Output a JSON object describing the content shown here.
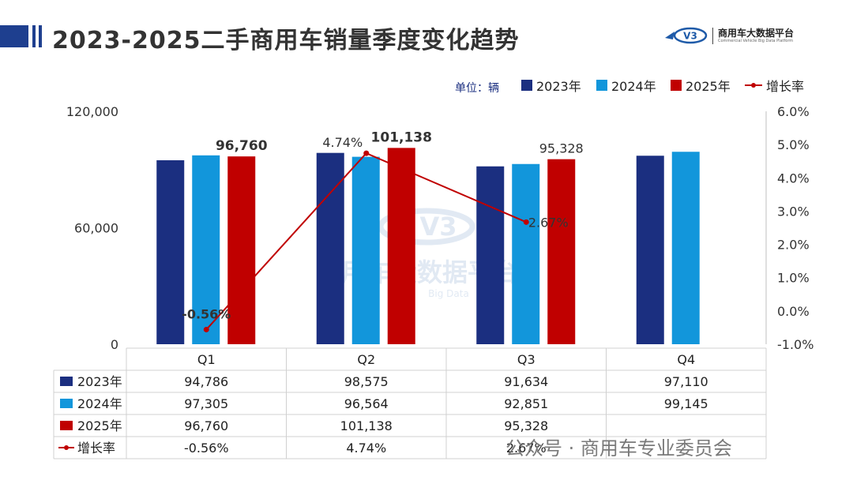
{
  "title": "2023-2025二手商用车销量季度变化趋势",
  "logo": {
    "name": "商用车大数据平台",
    "sub": "Commercial Vehicle Big Data Platform",
    "mark": "V3"
  },
  "unit_label": "单位：辆",
  "watermark": {
    "main": "商用车大数据平台",
    "sub": "Big Data",
    "mark": "V3"
  },
  "footer": "公众号 · 商用车专业委员会",
  "colors": {
    "s2023": "#1b2f80",
    "s2024": "#1296db",
    "s2025": "#c00000",
    "growth": "#c00000"
  },
  "chart_data": {
    "type": "bar",
    "categories": [
      "Q1",
      "Q2",
      "Q3",
      "Q4"
    ],
    "series": [
      {
        "name": "2023年",
        "values": [
          94786,
          98575,
          91634,
          97110
        ],
        "display": [
          "94,786",
          "98,575",
          "91,634",
          "97,110"
        ]
      },
      {
        "name": "2024年",
        "values": [
          97305,
          96564,
          92851,
          99145
        ],
        "display": [
          "97,305",
          "96,564",
          "92,851",
          "99,145"
        ]
      },
      {
        "name": "2025年",
        "values": [
          96760,
          101138,
          95328,
          null
        ],
        "display": [
          "96,760",
          "101,138",
          "95,328",
          ""
        ]
      }
    ],
    "line_series": {
      "name": "增长率",
      "values": [
        -0.56,
        4.74,
        2.67,
        null
      ],
      "display": [
        "-0.56%",
        "4.74%",
        "2.67%",
        ""
      ]
    },
    "bar_labels": [
      "96,760",
      "101,138",
      "95,328"
    ],
    "y_axis": {
      "range": [
        0,
        120000
      ],
      "ticks": [
        "0",
        "60,000",
        "120,000"
      ],
      "tick_values": [
        0,
        60000,
        120000
      ]
    },
    "y2_axis": {
      "range": [
        -1.0,
        6.0
      ],
      "ticks": [
        "6.0%",
        "5.0%",
        "4.0%",
        "3.0%",
        "2.0%",
        "1.0%",
        "0.0%",
        "-1.0%"
      ],
      "tick_values": [
        6,
        5,
        4,
        3,
        2,
        1,
        0,
        -1
      ]
    },
    "legend": [
      "2023年",
      "2024年",
      "2025年",
      "增长率"
    ]
  }
}
